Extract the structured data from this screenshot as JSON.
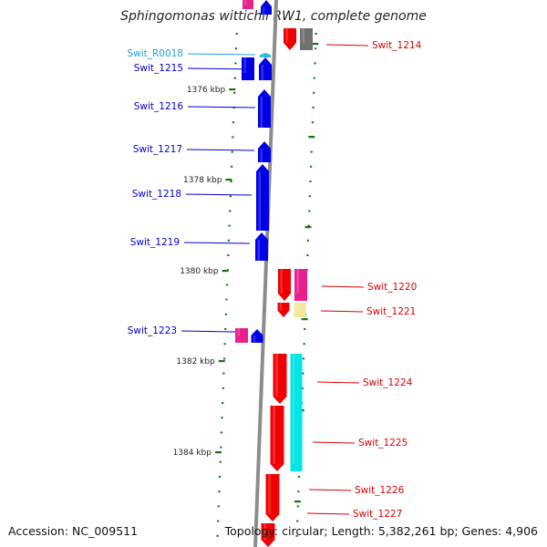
{
  "title": "Sphingomonas wittichii RW1, complete genome",
  "footer": {
    "accession": "Accession: NC_009511",
    "summary": "Topology: circular; Length: 5,382,261 bp; Genes: 4,906"
  },
  "colors": {
    "backbone": "#8c8c8c",
    "forward_gene": "#0000e6",
    "reverse_gene": "#f00000",
    "magenta": "#e8208c",
    "yellow": "#f3e89a",
    "cyan": "#00e6e6",
    "gray_gene": "#707070",
    "rna": "#28b4e6",
    "tick": "#117711",
    "label_forward": "#0000cc",
    "label_reverse": "#dd0000",
    "label_rna": "#20a0e0"
  },
  "ruler": [
    {
      "label": "1376 kbp"
    },
    {
      "label": "1378 kbp"
    },
    {
      "label": "1380 kbp"
    },
    {
      "label": "1382 kbp"
    },
    {
      "label": "1384 kbp"
    }
  ],
  "labels": [
    {
      "text": "Swit_R0018",
      "kind": "rna"
    },
    {
      "text": "Swit_1215",
      "kind": "forward"
    },
    {
      "text": "Swit_1216",
      "kind": "forward"
    },
    {
      "text": "Swit_1217",
      "kind": "forward"
    },
    {
      "text": "Swit_1218",
      "kind": "forward"
    },
    {
      "text": "Swit_1219",
      "kind": "forward"
    },
    {
      "text": "Swit_1223",
      "kind": "forward"
    },
    {
      "text": "Swit_1214",
      "kind": "reverse"
    },
    {
      "text": "Swit_1220",
      "kind": "reverse"
    },
    {
      "text": "Swit_1221",
      "kind": "reverse"
    },
    {
      "text": "Swit_1224",
      "kind": "reverse"
    },
    {
      "text": "Swit_1225",
      "kind": "reverse"
    },
    {
      "text": "Swit_1226",
      "kind": "reverse"
    },
    {
      "text": "Swit_1227",
      "kind": "reverse"
    }
  ]
}
